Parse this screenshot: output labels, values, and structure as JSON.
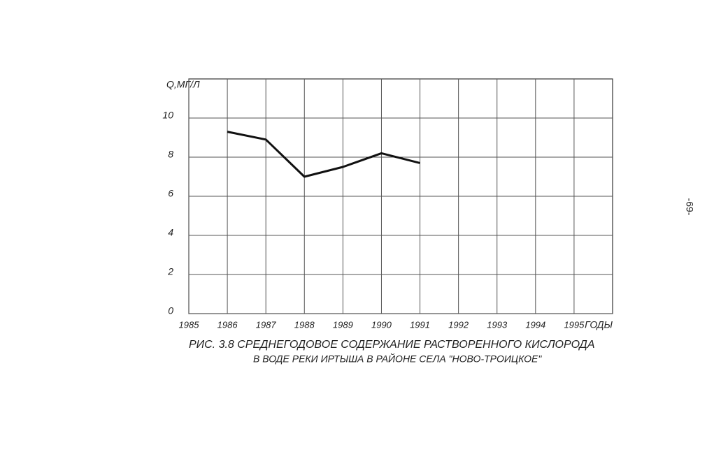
{
  "chart_data": {
    "type": "line",
    "y_label": "Q,МГ/Л",
    "x_label": "ГОДЫ",
    "caption_line1": "РИС. 3.8 СРЕДНЕГОДОВОЕ СОДЕРЖАНИЕ РАСТВОРЕННОГО КИСЛОРОДА",
    "caption_line2": "В ВОДЕ РЕКИ ИРТЫША В РАЙОНЕ СЕЛА \"НОВО-ТРОИЦКОЕ\"",
    "x": [
      1986,
      1987,
      1988,
      1989,
      1990,
      1991
    ],
    "values": [
      9.3,
      8.9,
      7.0,
      7.5,
      8.2,
      7.7
    ],
    "color": "#111111",
    "xlim": [
      1985,
      1996
    ],
    "xticks": [
      1985,
      1986,
      1987,
      1988,
      1989,
      1990,
      1991,
      1992,
      1993,
      1994,
      1995
    ],
    "ylim": [
      0,
      12
    ],
    "yticks": [
      0,
      2,
      4,
      6,
      8,
      10
    ],
    "grid": true
  },
  "page_number": "-69-"
}
